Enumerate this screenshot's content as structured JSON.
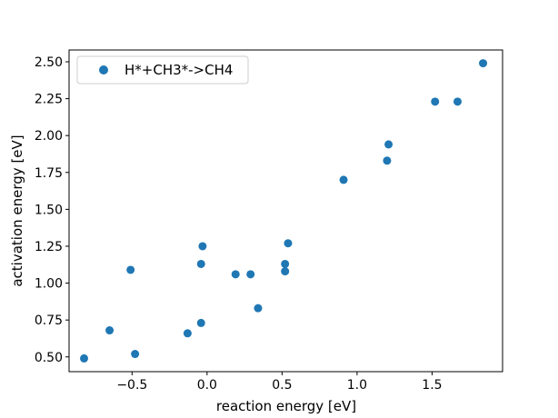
{
  "chart_data": {
    "type": "scatter",
    "title": "",
    "xlabel": "reaction energy [eV]",
    "ylabel": "activation energy [eV]",
    "xlim": [
      -0.92,
      1.97
    ],
    "ylim": [
      0.4,
      2.58
    ],
    "x_ticks": [
      -0.5,
      0.0,
      0.5,
      1.0,
      1.5
    ],
    "x_tick_labels": [
      "−0.5",
      "0.0",
      "0.5",
      "1.0",
      "1.5"
    ],
    "y_ticks": [
      0.5,
      0.75,
      1.0,
      1.25,
      1.5,
      1.75,
      2.0,
      2.25,
      2.5
    ],
    "y_tick_labels": [
      "0.50",
      "0.75",
      "1.00",
      "1.25",
      "1.50",
      "1.75",
      "2.00",
      "2.25",
      "2.50"
    ],
    "grid": false,
    "legend_position": "top-left",
    "series": [
      {
        "name": "H*+CH3*->CH4",
        "color": "#1f77b4",
        "marker": "circle",
        "points": [
          {
            "x": -0.82,
            "y": 0.49
          },
          {
            "x": -0.65,
            "y": 0.68
          },
          {
            "x": -0.51,
            "y": 1.09
          },
          {
            "x": -0.48,
            "y": 0.52
          },
          {
            "x": -0.13,
            "y": 0.66
          },
          {
            "x": -0.04,
            "y": 0.73
          },
          {
            "x": -0.04,
            "y": 1.13
          },
          {
            "x": -0.03,
            "y": 1.25
          },
          {
            "x": 0.19,
            "y": 1.06
          },
          {
            "x": 0.29,
            "y": 1.06
          },
          {
            "x": 0.34,
            "y": 0.83
          },
          {
            "x": 0.52,
            "y": 1.08
          },
          {
            "x": 0.52,
            "y": 1.13
          },
          {
            "x": 0.54,
            "y": 1.27
          },
          {
            "x": 0.91,
            "y": 1.7
          },
          {
            "x": 1.2,
            "y": 1.83
          },
          {
            "x": 1.21,
            "y": 1.94
          },
          {
            "x": 1.52,
            "y": 2.23
          },
          {
            "x": 1.67,
            "y": 2.23
          },
          {
            "x": 1.84,
            "y": 2.49
          }
        ]
      }
    ]
  }
}
